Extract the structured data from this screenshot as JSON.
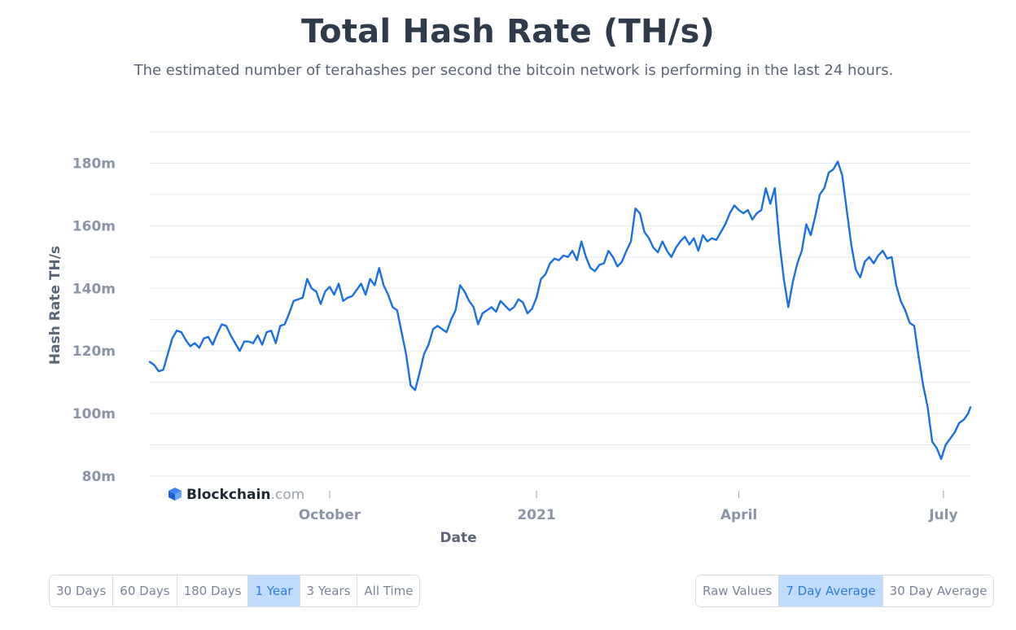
{
  "header": {
    "title": "Total Hash Rate (TH/s)",
    "subtitle": "The estimated number of terahashes per second the bitcoin network is performing in the last 24 hours."
  },
  "logo": {
    "brand": "Blockchain",
    "suffix": ".com"
  },
  "range_buttons": [
    {
      "label": "30 Days",
      "active": false
    },
    {
      "label": "60 Days",
      "active": false
    },
    {
      "label": "180 Days",
      "active": false
    },
    {
      "label": "1 Year",
      "active": true
    },
    {
      "label": "3 Years",
      "active": false
    },
    {
      "label": "All Time",
      "active": false
    }
  ],
  "average_buttons": [
    {
      "label": "Raw Values",
      "active": false
    },
    {
      "label": "7 Day Average",
      "active": true
    },
    {
      "label": "30 Day Average",
      "active": false
    }
  ],
  "colors": {
    "line": "#1b6fe0",
    "grid": "#e6e9ef",
    "active_button_bg": "#bfdcff"
  },
  "chart_data": {
    "type": "line",
    "title": "Total Hash Rate (TH/s)",
    "xlabel": "Date",
    "ylabel": "Hash Rate TH/s",
    "x_range": [
      "2020-07-13",
      "2021-07-13"
    ],
    "ylim": [
      80,
      190
    ],
    "y_ticks": [
      80,
      100,
      120,
      140,
      160,
      180
    ],
    "y_tick_labels": [
      "80m",
      "100m",
      "120m",
      "140m",
      "160m",
      "180m"
    ],
    "x_ticks": [
      {
        "date": "2020-10-01",
        "label": "October"
      },
      {
        "date": "2021-01-01",
        "label": "2021"
      },
      {
        "date": "2021-04-01",
        "label": "April"
      },
      {
        "date": "2021-07-01",
        "label": "July"
      }
    ],
    "grid": true,
    "legend": "none",
    "series": [
      {
        "values": [
          [
            "2020-07-13",
            116.5
          ],
          [
            "2020-07-15",
            115.5
          ],
          [
            "2020-07-17",
            113.5
          ],
          [
            "2020-07-19",
            114
          ],
          [
            "2020-07-21",
            119
          ],
          [
            "2020-07-23",
            124
          ],
          [
            "2020-07-25",
            126.5
          ],
          [
            "2020-07-27",
            126
          ],
          [
            "2020-07-29",
            123.5
          ],
          [
            "2020-07-31",
            121.5
          ],
          [
            "2020-08-02",
            122.5
          ],
          [
            "2020-08-04",
            121
          ],
          [
            "2020-08-06",
            124
          ],
          [
            "2020-08-08",
            124.5
          ],
          [
            "2020-08-10",
            122
          ],
          [
            "2020-08-12",
            125.5
          ],
          [
            "2020-08-14",
            128.5
          ],
          [
            "2020-08-16",
            128
          ],
          [
            "2020-08-18",
            125
          ],
          [
            "2020-08-20",
            122.5
          ],
          [
            "2020-08-22",
            120
          ],
          [
            "2020-08-24",
            123
          ],
          [
            "2020-08-26",
            123
          ],
          [
            "2020-08-28",
            122.5
          ],
          [
            "2020-08-30",
            125
          ],
          [
            "2020-09-01",
            122
          ],
          [
            "2020-09-03",
            126
          ],
          [
            "2020-09-05",
            126.5
          ],
          [
            "2020-09-07",
            122.5
          ],
          [
            "2020-09-09",
            128
          ],
          [
            "2020-09-11",
            128.5
          ],
          [
            "2020-09-13",
            132
          ],
          [
            "2020-09-15",
            136
          ],
          [
            "2020-09-17",
            136.5
          ],
          [
            "2020-09-19",
            137
          ],
          [
            "2020-09-21",
            143
          ],
          [
            "2020-09-23",
            140
          ],
          [
            "2020-09-25",
            139
          ],
          [
            "2020-09-27",
            135
          ],
          [
            "2020-09-29",
            139
          ],
          [
            "2020-10-01",
            140.5
          ],
          [
            "2020-10-03",
            138
          ],
          [
            "2020-10-05",
            141.5
          ],
          [
            "2020-10-07",
            136
          ],
          [
            "2020-10-09",
            137
          ],
          [
            "2020-10-11",
            137.5
          ],
          [
            "2020-10-13",
            139.5
          ],
          [
            "2020-10-15",
            141.5
          ],
          [
            "2020-10-17",
            138
          ],
          [
            "2020-10-19",
            143
          ],
          [
            "2020-10-21",
            141
          ],
          [
            "2020-10-23",
            146.5
          ],
          [
            "2020-10-25",
            141
          ],
          [
            "2020-10-27",
            138
          ],
          [
            "2020-10-29",
            134
          ],
          [
            "2020-10-31",
            133
          ],
          [
            "2020-11-02",
            126
          ],
          [
            "2020-11-04",
            119
          ],
          [
            "2020-11-06",
            109
          ],
          [
            "2020-11-08",
            107.5
          ],
          [
            "2020-11-10",
            113
          ],
          [
            "2020-11-12",
            119
          ],
          [
            "2020-11-14",
            122
          ],
          [
            "2020-11-16",
            127
          ],
          [
            "2020-11-18",
            128
          ],
          [
            "2020-11-20",
            127
          ],
          [
            "2020-11-22",
            126
          ],
          [
            "2020-11-24",
            130
          ],
          [
            "2020-11-26",
            133
          ],
          [
            "2020-11-28",
            141
          ],
          [
            "2020-11-30",
            139
          ],
          [
            "2020-12-02",
            136
          ],
          [
            "2020-12-04",
            134
          ],
          [
            "2020-12-06",
            128.5
          ],
          [
            "2020-12-08",
            132
          ],
          [
            "2020-12-10",
            133
          ],
          [
            "2020-12-12",
            134
          ],
          [
            "2020-12-14",
            132.5
          ],
          [
            "2020-12-16",
            136
          ],
          [
            "2020-12-18",
            134.5
          ],
          [
            "2020-12-20",
            133
          ],
          [
            "2020-12-22",
            134
          ],
          [
            "2020-12-24",
            136.5
          ],
          [
            "2020-12-26",
            135.5
          ],
          [
            "2020-12-28",
            132
          ],
          [
            "2020-12-30",
            133.5
          ],
          [
            "2021-01-01",
            137
          ],
          [
            "2021-01-03",
            143
          ],
          [
            "2021-01-05",
            144.5
          ],
          [
            "2021-01-07",
            148
          ],
          [
            "2021-01-09",
            149.5
          ],
          [
            "2021-01-11",
            149
          ],
          [
            "2021-01-13",
            150.5
          ],
          [
            "2021-01-15",
            150
          ],
          [
            "2021-01-17",
            152
          ],
          [
            "2021-01-19",
            149
          ],
          [
            "2021-01-21",
            155
          ],
          [
            "2021-01-23",
            150
          ],
          [
            "2021-01-25",
            146.5
          ],
          [
            "2021-01-27",
            145.5
          ],
          [
            "2021-01-29",
            147.5
          ],
          [
            "2021-01-31",
            148
          ],
          [
            "2021-02-02",
            152
          ],
          [
            "2021-02-04",
            150
          ],
          [
            "2021-02-06",
            147
          ],
          [
            "2021-02-08",
            148.5
          ],
          [
            "2021-02-10",
            152
          ],
          [
            "2021-02-12",
            155
          ],
          [
            "2021-02-14",
            165.5
          ],
          [
            "2021-02-16",
            164
          ],
          [
            "2021-02-18",
            158
          ],
          [
            "2021-02-20",
            156
          ],
          [
            "2021-02-22",
            153
          ],
          [
            "2021-02-24",
            151.5
          ],
          [
            "2021-02-26",
            155
          ],
          [
            "2021-02-28",
            152
          ],
          [
            "2021-03-02",
            150
          ],
          [
            "2021-03-04",
            153
          ],
          [
            "2021-03-06",
            155
          ],
          [
            "2021-03-08",
            156.5
          ],
          [
            "2021-03-10",
            154
          ],
          [
            "2021-03-12",
            156
          ],
          [
            "2021-03-14",
            152
          ],
          [
            "2021-03-16",
            157
          ],
          [
            "2021-03-18",
            155
          ],
          [
            "2021-03-20",
            156
          ],
          [
            "2021-03-22",
            155.5
          ],
          [
            "2021-03-24",
            158
          ],
          [
            "2021-03-26",
            160.5
          ],
          [
            "2021-03-28",
            164
          ],
          [
            "2021-03-30",
            166.5
          ],
          [
            "2021-04-01",
            165
          ],
          [
            "2021-04-03",
            164
          ],
          [
            "2021-04-05",
            165
          ],
          [
            "2021-04-07",
            162
          ],
          [
            "2021-04-09",
            164
          ],
          [
            "2021-04-11",
            165
          ],
          [
            "2021-04-13",
            172
          ],
          [
            "2021-04-15",
            167
          ],
          [
            "2021-04-17",
            172
          ],
          [
            "2021-04-19",
            155
          ],
          [
            "2021-04-21",
            143
          ],
          [
            "2021-04-23",
            134
          ],
          [
            "2021-04-25",
            142
          ],
          [
            "2021-04-27",
            148
          ],
          [
            "2021-04-29",
            152
          ],
          [
            "2021-05-01",
            160.5
          ],
          [
            "2021-05-03",
            157
          ],
          [
            "2021-05-05",
            163
          ],
          [
            "2021-05-07",
            170
          ],
          [
            "2021-05-09",
            172
          ],
          [
            "2021-05-11",
            177
          ],
          [
            "2021-05-13",
            178
          ],
          [
            "2021-05-15",
            180.5
          ],
          [
            "2021-05-17",
            176
          ],
          [
            "2021-05-19",
            165
          ],
          [
            "2021-05-21",
            154
          ],
          [
            "2021-05-23",
            146
          ],
          [
            "2021-05-25",
            143.5
          ],
          [
            "2021-05-27",
            148.5
          ],
          [
            "2021-05-29",
            150
          ],
          [
            "2021-05-31",
            148
          ],
          [
            "2021-06-02",
            150.5
          ],
          [
            "2021-06-04",
            152
          ],
          [
            "2021-06-06",
            149.5
          ],
          [
            "2021-06-08",
            150
          ],
          [
            "2021-06-10",
            141
          ],
          [
            "2021-06-12",
            136
          ],
          [
            "2021-06-14",
            133
          ],
          [
            "2021-06-16",
            129
          ],
          [
            "2021-06-18",
            128
          ],
          [
            "2021-06-20",
            118
          ],
          [
            "2021-06-22",
            109
          ],
          [
            "2021-06-24",
            102
          ],
          [
            "2021-06-26",
            91
          ],
          [
            "2021-06-28",
            89
          ],
          [
            "2021-06-30",
            85.5
          ],
          [
            "2021-07-02",
            90
          ],
          [
            "2021-07-04",
            92
          ],
          [
            "2021-07-06",
            94
          ],
          [
            "2021-07-08",
            97
          ],
          [
            "2021-07-10",
            98
          ],
          [
            "2021-07-12",
            100
          ],
          [
            "2021-07-13",
            102
          ]
        ]
      }
    ]
  }
}
